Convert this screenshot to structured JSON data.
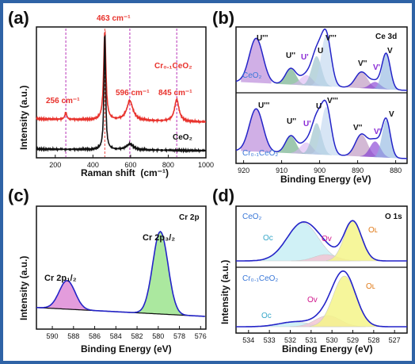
{
  "panels": [
    {
      "label": "(a)",
      "xlabel": "Raman shift  (cm⁻¹)",
      "ylabel": "Intensity (a.u.)",
      "xticks": [
        "200",
        "400",
        "600",
        "800",
        "1000"
      ],
      "annotations": [
        "463 cm⁻¹",
        "256 cm⁻¹",
        "596 cm⁻¹",
        "845 cm⁻¹"
      ],
      "sample_labels": [
        "Cr₀.₁CeO₂",
        "CeO₂"
      ]
    },
    {
      "label": "(b)",
      "title": "Ce 3d",
      "xlabel": "Binding Energy (eV)",
      "xticks": [
        "920",
        "910",
        "900",
        "890",
        "880"
      ],
      "sample_labels": [
        "CeO₂",
        "Cr₀.₁CeO₂"
      ],
      "peak_labels_top": [
        "U'''",
        "U''",
        "U'",
        "U",
        "V'''",
        "V''",
        "V'",
        "V"
      ],
      "peak_labels_bottom": [
        "U'''",
        "U''",
        "U'",
        "U",
        "V'''",
        "V''",
        "V'",
        "V"
      ]
    },
    {
      "label": "(c)",
      "title": "Cr 2p",
      "xlabel": "Binding Energy (eV)",
      "ylabel": "Intensity (a.u.)",
      "xticks": [
        "590",
        "588",
        "586",
        "584",
        "582",
        "580",
        "578",
        "576"
      ],
      "peak_labels": [
        "Cr 2p₁/₂",
        "Cr 2p₃/₂"
      ]
    },
    {
      "label": "(d)",
      "title": "O 1s",
      "xlabel": "Binding Energy (eV)",
      "ylabel": "Intensity (a.u.)",
      "xticks": [
        "534",
        "533",
        "532",
        "531",
        "530",
        "529",
        "528",
        "527"
      ],
      "sample_labels": [
        "CeO₂",
        "Cr₀.₁CeO₂"
      ],
      "peak_labels_top": [
        "Oᴄ",
        "Oᴠ",
        "Oʟ"
      ],
      "peak_labels_bottom": [
        "Oᴄ",
        "Oᴠ",
        "Oʟ"
      ]
    }
  ],
  "chart_data": [
    {
      "type": "line",
      "title": "",
      "xlabel": "Raman shift (cm⁻¹)",
      "ylabel": "Intensity (a.u.)",
      "xlim": [
        100,
        1000
      ],
      "series": [
        {
          "name": "Cr0.1CeO2",
          "color": "#e8322c",
          "peaks": [
            {
              "x": 256,
              "h": 0.08
            },
            {
              "x": 463,
              "h": 1.0
            },
            {
              "x": 596,
              "h": 0.22
            },
            {
              "x": 845,
              "h": 0.25
            }
          ]
        },
        {
          "name": "CeO2",
          "color": "#111111",
          "peaks": [
            {
              "x": 463,
              "h": 1.0
            },
            {
              "x": 596,
              "h": 0.05
            }
          ]
        }
      ],
      "reference_lines_x": [
        256,
        463,
        596,
        845
      ]
    },
    {
      "type": "line",
      "title": "Ce 3d",
      "xlabel": "Binding Energy (eV)",
      "xlim": [
        922,
        877
      ],
      "series": [
        {
          "name": "CeO2",
          "peaks": [
            916.7,
            907.6,
            903.5,
            900.8,
            898.3,
            889.0,
            885.4,
            882.5
          ]
        },
        {
          "name": "Cr0.1CeO2",
          "peaks": [
            916.7,
            907.6,
            903.5,
            900.8,
            898.3,
            889.0,
            885.4,
            882.5
          ]
        }
      ]
    },
    {
      "type": "line",
      "title": "Cr 2p",
      "xlabel": "Binding Energy (eV)",
      "ylabel": "Intensity (a.u.)",
      "xlim": [
        591.5,
        575.5
      ],
      "series": [
        {
          "name": "Cr 2p1/2",
          "center": 588.6,
          "color": "#d97bd0"
        },
        {
          "name": "Cr 2p3/2",
          "center": 579.8,
          "color": "#8fe07f"
        }
      ]
    },
    {
      "type": "line",
      "title": "O 1s",
      "xlabel": "Binding Energy (eV)",
      "ylabel": "Intensity (a.u.)",
      "xlim": [
        534.6,
        526.4
      ],
      "series": [
        {
          "name": "CeO2",
          "components": [
            {
              "label": "OC",
              "x": 531.4
            },
            {
              "label": "OV",
              "x": 530.3
            },
            {
              "label": "OL",
              "x": 529.0
            }
          ]
        },
        {
          "name": "Cr0.1CeO2",
          "components": [
            {
              "label": "OC",
              "x": 531.8
            },
            {
              "label": "OV",
              "x": 530.2
            },
            {
              "label": "OL",
              "x": 529.4
            }
          ]
        }
      ]
    }
  ],
  "colors": {
    "frame": "#2f63a6",
    "red_curve": "#e8322c",
    "fit_blue": "#2424c8",
    "cr_pink": "#d97bd0",
    "cr_green": "#8fe07f",
    "orange_label": "#e07b1a",
    "cyan_label": "#37a7c8",
    "magenta_label": "#d0158c",
    "purple_label": "#8a2bd6",
    "sample_blue": "#3a78d8"
  }
}
